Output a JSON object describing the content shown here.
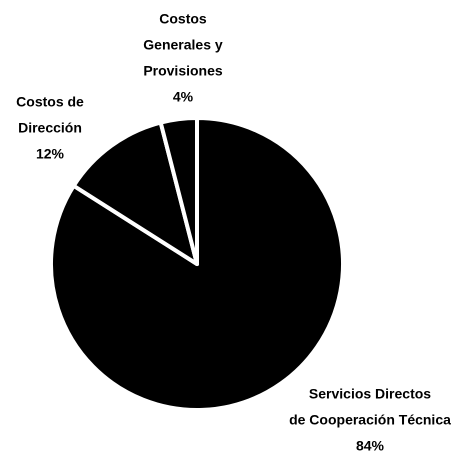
{
  "chart_data": {
    "type": "pie",
    "categories": [
      [
        "Servicios Directos",
        "de Cooperación Técnica"
      ],
      [
        "Costos de",
        "Dirección"
      ],
      [
        "Costos",
        "Generales y",
        "Provisiones"
      ]
    ],
    "values": [
      84,
      12,
      4
    ],
    "value_labels": [
      "84%",
      "12%",
      "4%"
    ],
    "color": "#000000"
  }
}
